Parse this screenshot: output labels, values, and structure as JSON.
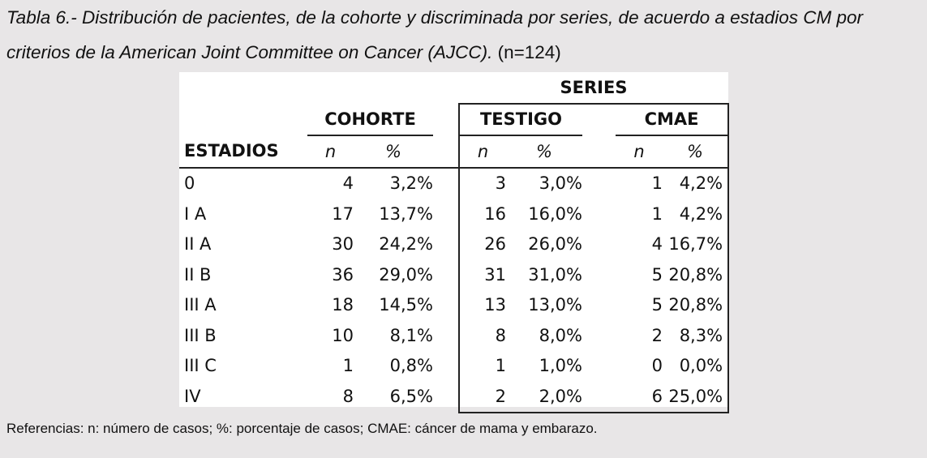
{
  "caption": {
    "text": "Tabla 6.- Distribución de pacientes, de la cohorte y discriminada por series, de acuerdo a estadios CM por criterios de la American Joint Committee on Cancer (AJCC).",
    "n_note": "(n=124)"
  },
  "table": {
    "series_header": "SERIES",
    "group_headers": [
      "COHORTE",
      "TESTIGO",
      "CMAE"
    ],
    "stage_header": "ESTADIOS",
    "n_label": "n",
    "pct_label": "%",
    "rows": [
      {
        "stage": "0",
        "cohorte_n": "4",
        "cohorte_pct": "3,2%",
        "testigo_n": "3",
        "testigo_pct": "3,0%",
        "cmae_n": "1",
        "cmae_pct": "4,2%"
      },
      {
        "stage": "I A",
        "cohorte_n": "17",
        "cohorte_pct": "13,7%",
        "testigo_n": "16",
        "testigo_pct": "16,0%",
        "cmae_n": "1",
        "cmae_pct": "4,2%"
      },
      {
        "stage": "II A",
        "cohorte_n": "30",
        "cohorte_pct": "24,2%",
        "testigo_n": "26",
        "testigo_pct": "26,0%",
        "cmae_n": "4",
        "cmae_pct": "16,7%"
      },
      {
        "stage": "II B",
        "cohorte_n": "36",
        "cohorte_pct": "29,0%",
        "testigo_n": "31",
        "testigo_pct": "31,0%",
        "cmae_n": "5",
        "cmae_pct": "20,8%"
      },
      {
        "stage": "III A",
        "cohorte_n": "18",
        "cohorte_pct": "14,5%",
        "testigo_n": "13",
        "testigo_pct": "13,0%",
        "cmae_n": "5",
        "cmae_pct": "20,8%"
      },
      {
        "stage": "III B",
        "cohorte_n": "10",
        "cohorte_pct": "8,1%",
        "testigo_n": "8",
        "testigo_pct": "8,0%",
        "cmae_n": "2",
        "cmae_pct": "8,3%"
      },
      {
        "stage": "III C",
        "cohorte_n": "1",
        "cohorte_pct": "0,8%",
        "testigo_n": "1",
        "testigo_pct": "1,0%",
        "cmae_n": "0",
        "cmae_pct": "0,0%"
      },
      {
        "stage": "IV",
        "cohorte_n": "8",
        "cohorte_pct": "6,5%",
        "testigo_n": "2",
        "testigo_pct": "2,0%",
        "cmae_n": "6",
        "cmae_pct": "25,0%"
      }
    ]
  },
  "footer": "Referencias: n: número de casos; %: porcentaje de casos; CMAE: cáncer de mama y embarazo.",
  "colors": {
    "background": "#e8e6e7",
    "table_background": "#ffffff",
    "text": "#111111"
  }
}
